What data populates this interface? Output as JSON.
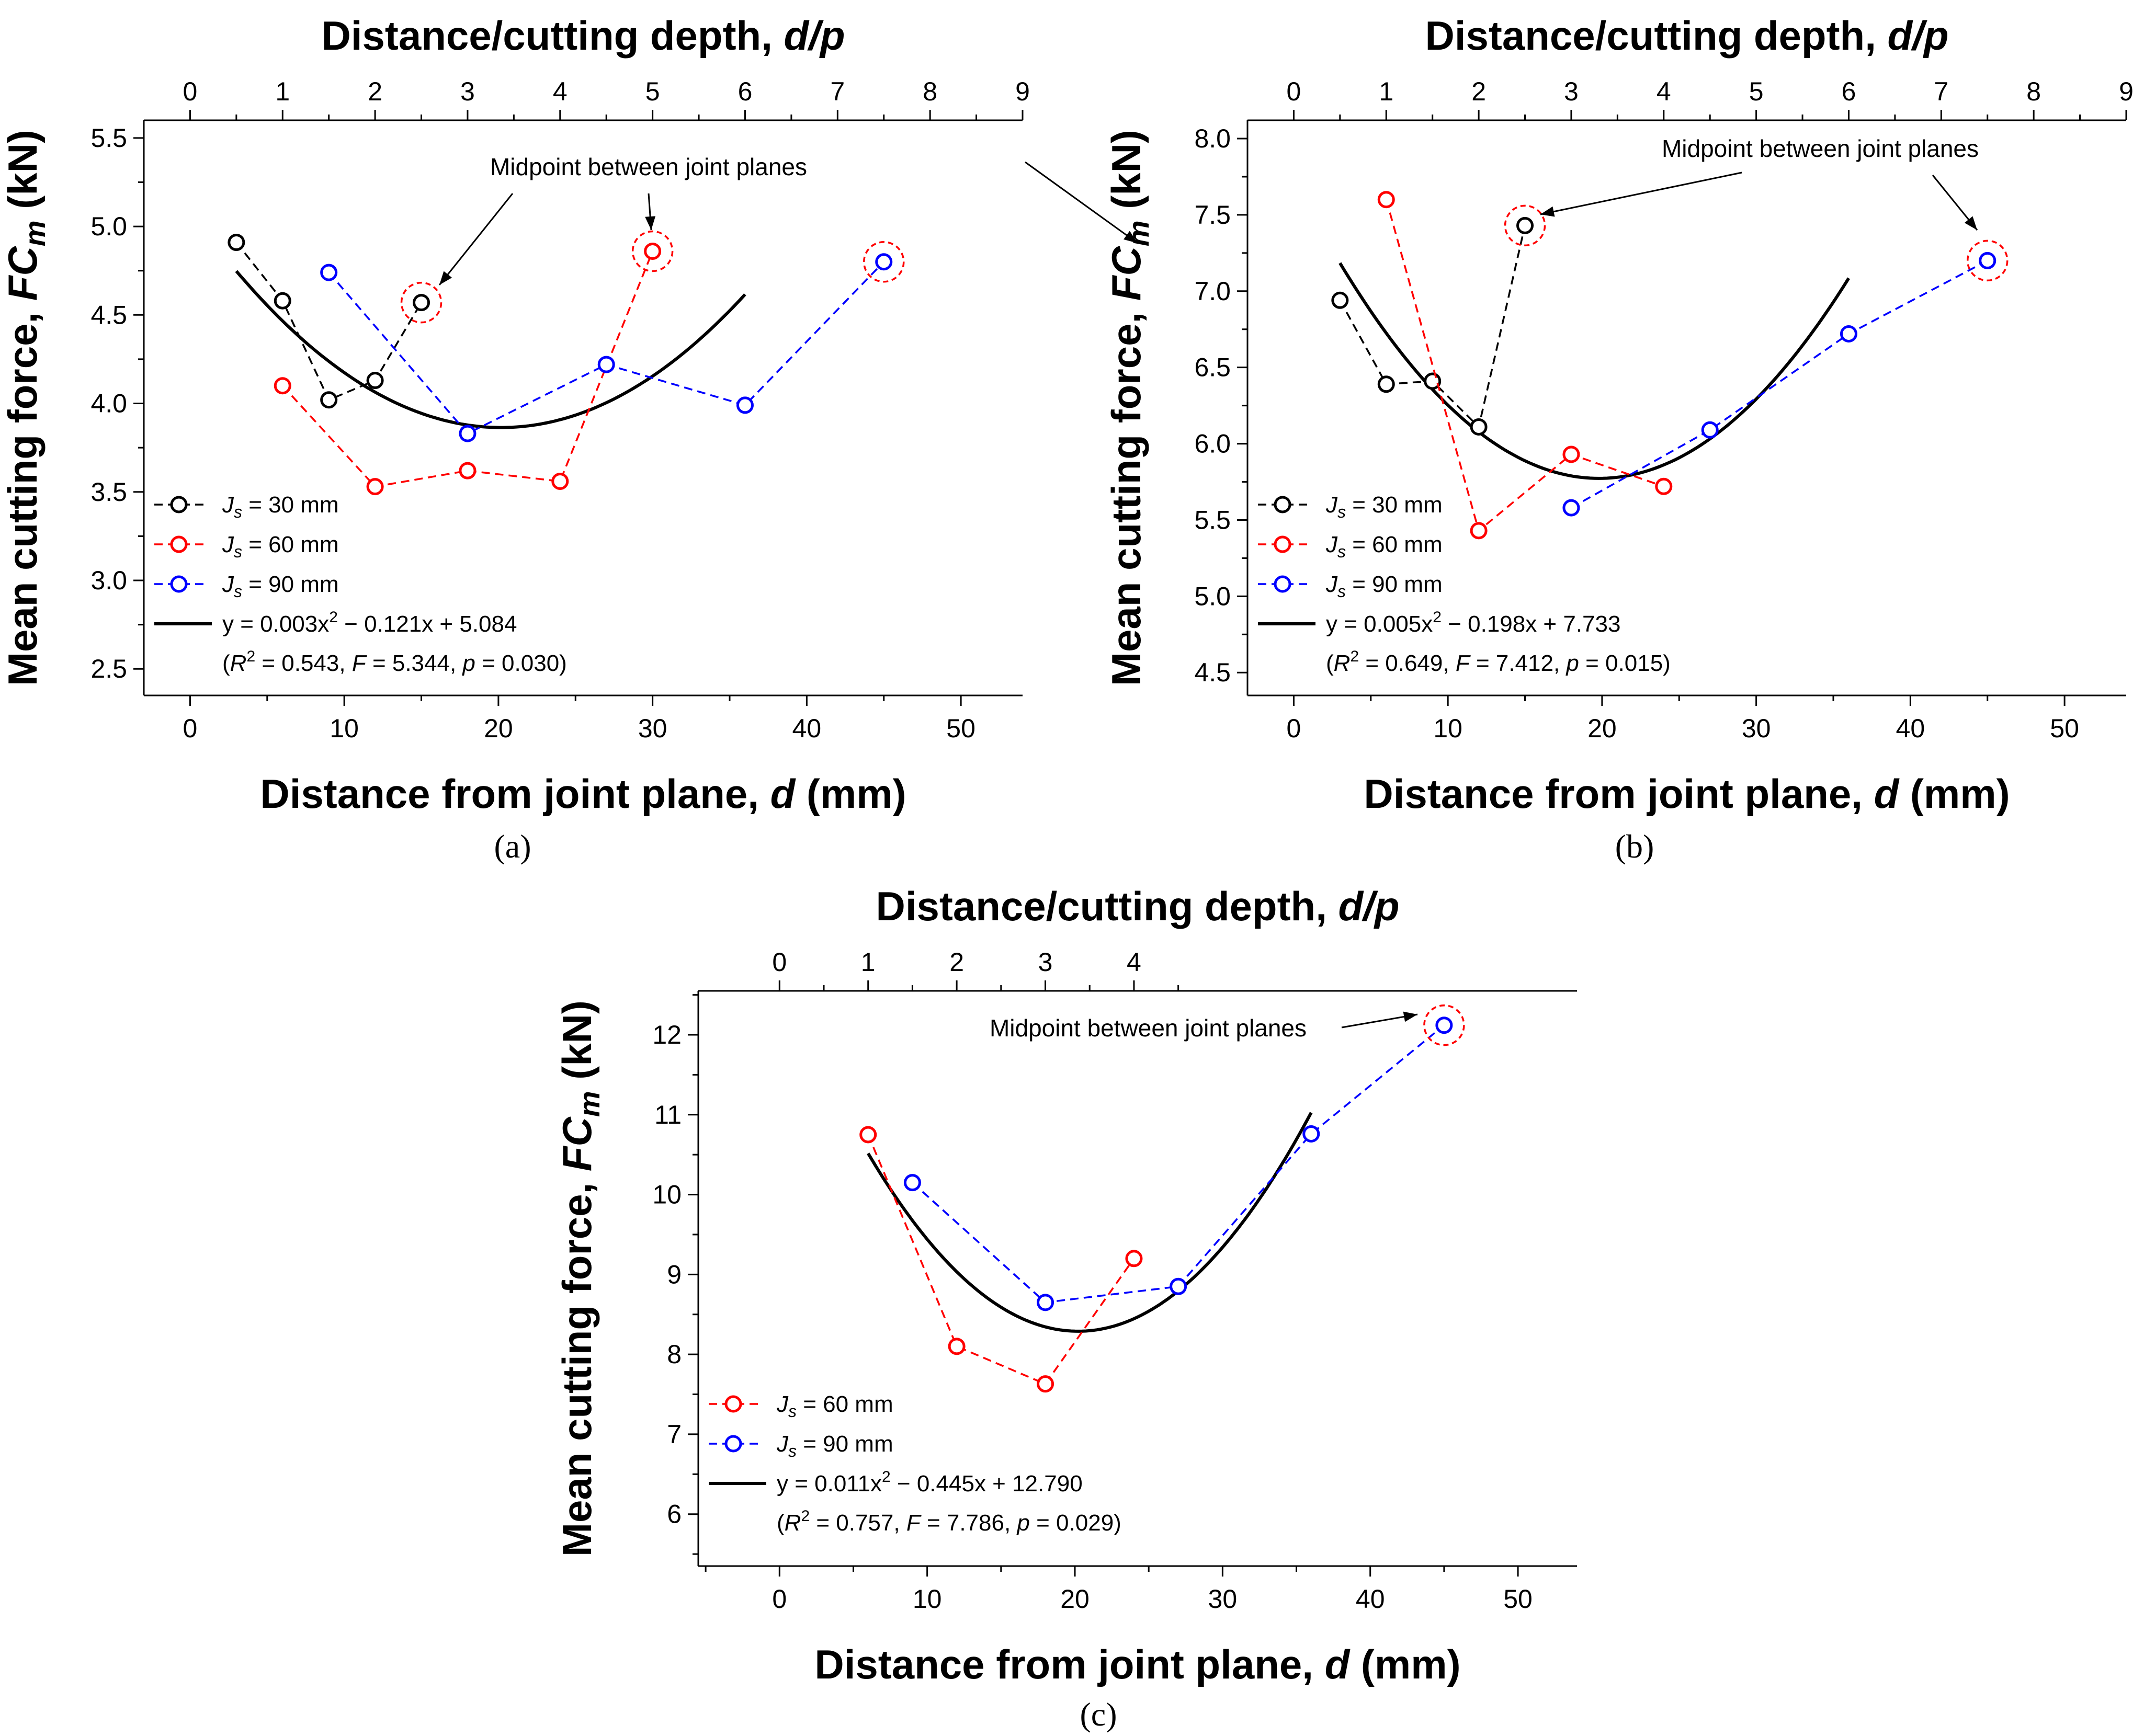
{
  "figure": {
    "annotation_text": "Midpoint between joint planes"
  },
  "chart_data": [
    {
      "type": "scatter",
      "panel_label": "(a)",
      "xlabel_prefix": "Distance from joint plane, ",
      "xlabel_var": "d",
      "xlabel_suffix": " (mm)",
      "top_xlabel_prefix": "Distance/cutting depth, ",
      "top_xlabel_var": "d/p",
      "ylabel_prefix": "Mean cutting force, ",
      "ylabel_var": "FC",
      "ylabel_sub": "m",
      "ylabel_suffix": " (kN)",
      "xlim": [
        -3,
        54
      ],
      "ylim": [
        2.35,
        5.6
      ],
      "x_ticks": [
        "0",
        "10",
        "20",
        "30",
        "40",
        "50"
      ],
      "top_ticks": [
        "0",
        "1",
        "2",
        "3",
        "4",
        "5",
        "6",
        "7",
        "8",
        "9"
      ],
      "y_ticks": [
        "2.5",
        "3.0",
        "3.5",
        "4.0",
        "4.5",
        "5.0",
        "5.5"
      ],
      "series": [
        {
          "name": "J_s = 30 mm",
          "js_value": "30",
          "color": "#000000",
          "x": [
            3,
            6,
            9,
            12,
            15
          ],
          "y": [
            4.91,
            4.58,
            4.02,
            4.13,
            4.57
          ]
        },
        {
          "name": "J_s = 60 mm",
          "js_value": "60",
          "color": "#ff0000",
          "x": [
            6,
            12,
            18,
            24,
            30
          ],
          "y": [
            4.1,
            3.53,
            3.62,
            3.56,
            4.86
          ]
        },
        {
          "name": "J_s = 90 mm",
          "js_value": "90",
          "color": "#0000ff",
          "x": [
            9,
            18,
            27,
            36,
            45
          ],
          "y": [
            4.74,
            3.83,
            4.22,
            3.99,
            4.8
          ]
        }
      ],
      "fit": {
        "a": 0.003,
        "b": -0.121,
        "c": 5.084,
        "x_range": [
          3,
          36
        ],
        "eq_prefix": "y = 0.003x",
        "eq_suffix": " − 0.121x + 5.084",
        "r2": "0.543",
        "F": "5.344",
        "p": "0.030"
      },
      "midpoints": [
        [
          15,
          4.57
        ],
        [
          30,
          4.86
        ],
        [
          45,
          4.8
        ]
      ]
    },
    {
      "type": "scatter",
      "panel_label": "(b)",
      "xlabel_prefix": "Distance from joint plane, ",
      "xlabel_var": "d",
      "xlabel_suffix": " (mm)",
      "top_xlabel_prefix": "Distance/cutting depth, ",
      "top_xlabel_var": "d/p",
      "ylabel_prefix": "Mean cutting force, ",
      "ylabel_var": "FC",
      "ylabel_sub": "m",
      "ylabel_suffix": " (kN)",
      "xlim": [
        -3,
        54
      ],
      "ylim": [
        4.35,
        8.12
      ],
      "x_ticks": [
        "0",
        "10",
        "20",
        "30",
        "40",
        "50"
      ],
      "top_ticks": [
        "0",
        "1",
        "2",
        "3",
        "4",
        "5",
        "6",
        "7",
        "8",
        "9"
      ],
      "y_ticks": [
        "4.5",
        "5.0",
        "5.5",
        "6.0",
        "6.5",
        "7.0",
        "7.5",
        "8.0"
      ],
      "series": [
        {
          "name": "J_s = 30 mm",
          "js_value": "30",
          "color": "#000000",
          "x": [
            3,
            6,
            9,
            12,
            15
          ],
          "y": [
            6.94,
            6.39,
            6.41,
            6.11,
            7.43
          ]
        },
        {
          "name": "J_s = 60 mm",
          "js_value": "60",
          "color": "#ff0000",
          "x": [
            6,
            12,
            18,
            24
          ],
          "y": [
            7.6,
            5.43,
            5.93,
            5.72
          ]
        },
        {
          "name": "J_s = 90 mm",
          "js_value": "90",
          "color": "#0000ff",
          "x": [
            18,
            27,
            36,
            45
          ],
          "y": [
            5.58,
            6.09,
            6.72,
            7.2
          ]
        }
      ],
      "fit": {
        "a": 0.005,
        "b": -0.198,
        "c": 7.733,
        "x_range": [
          3,
          36
        ],
        "eq_prefix": "y = 0.005x",
        "eq_suffix": " − 0.198x + 7.733",
        "r2": "0.649",
        "F": "7.412",
        "p": "0.015"
      },
      "midpoints": [
        [
          15,
          7.43
        ],
        [
          45,
          7.2
        ]
      ]
    },
    {
      "type": "scatter",
      "panel_label": "(c)",
      "xlabel_prefix": "Distance from joint plane, ",
      "xlabel_var": "d",
      "xlabel_suffix": " (mm)",
      "top_xlabel_prefix": "Distance/cutting depth, ",
      "top_xlabel_var": "d/p",
      "ylabel_prefix": "Mean cutting force, ",
      "ylabel_var": "FC",
      "ylabel_sub": "m",
      "ylabel_suffix": " (kN)",
      "xlim": [
        -5.5,
        54
      ],
      "ylim": [
        5.35,
        12.55
      ],
      "x_ticks": [
        "0",
        "10",
        "20",
        "30",
        "40",
        "50"
      ],
      "top_ticks": [
        "0",
        "1",
        "2",
        "3",
        "4"
      ],
      "y_ticks": [
        "6",
        "7",
        "8",
        "9",
        "10",
        "11",
        "12"
      ],
      "series": [
        {
          "name": "J_s = 60 mm",
          "js_value": "60",
          "color": "#ff0000",
          "x": [
            6,
            12,
            18,
            24
          ],
          "y": [
            10.75,
            8.1,
            7.63,
            9.2
          ]
        },
        {
          "name": "J_s = 90 mm",
          "js_value": "90",
          "color": "#0000ff",
          "x": [
            9,
            18,
            27,
            36,
            45
          ],
          "y": [
            10.15,
            8.65,
            8.85,
            10.76,
            12.12
          ]
        }
      ],
      "fit": {
        "a": 0.011,
        "b": -0.445,
        "c": 12.79,
        "x_range": [
          6,
          36
        ],
        "eq_prefix": "y = 0.011x",
        "eq_suffix": " − 0.445x + 12.790",
        "r2": "0.757",
        "F": "7.786",
        "p": "0.029"
      },
      "midpoints": [
        [
          45,
          12.12
        ]
      ]
    }
  ]
}
